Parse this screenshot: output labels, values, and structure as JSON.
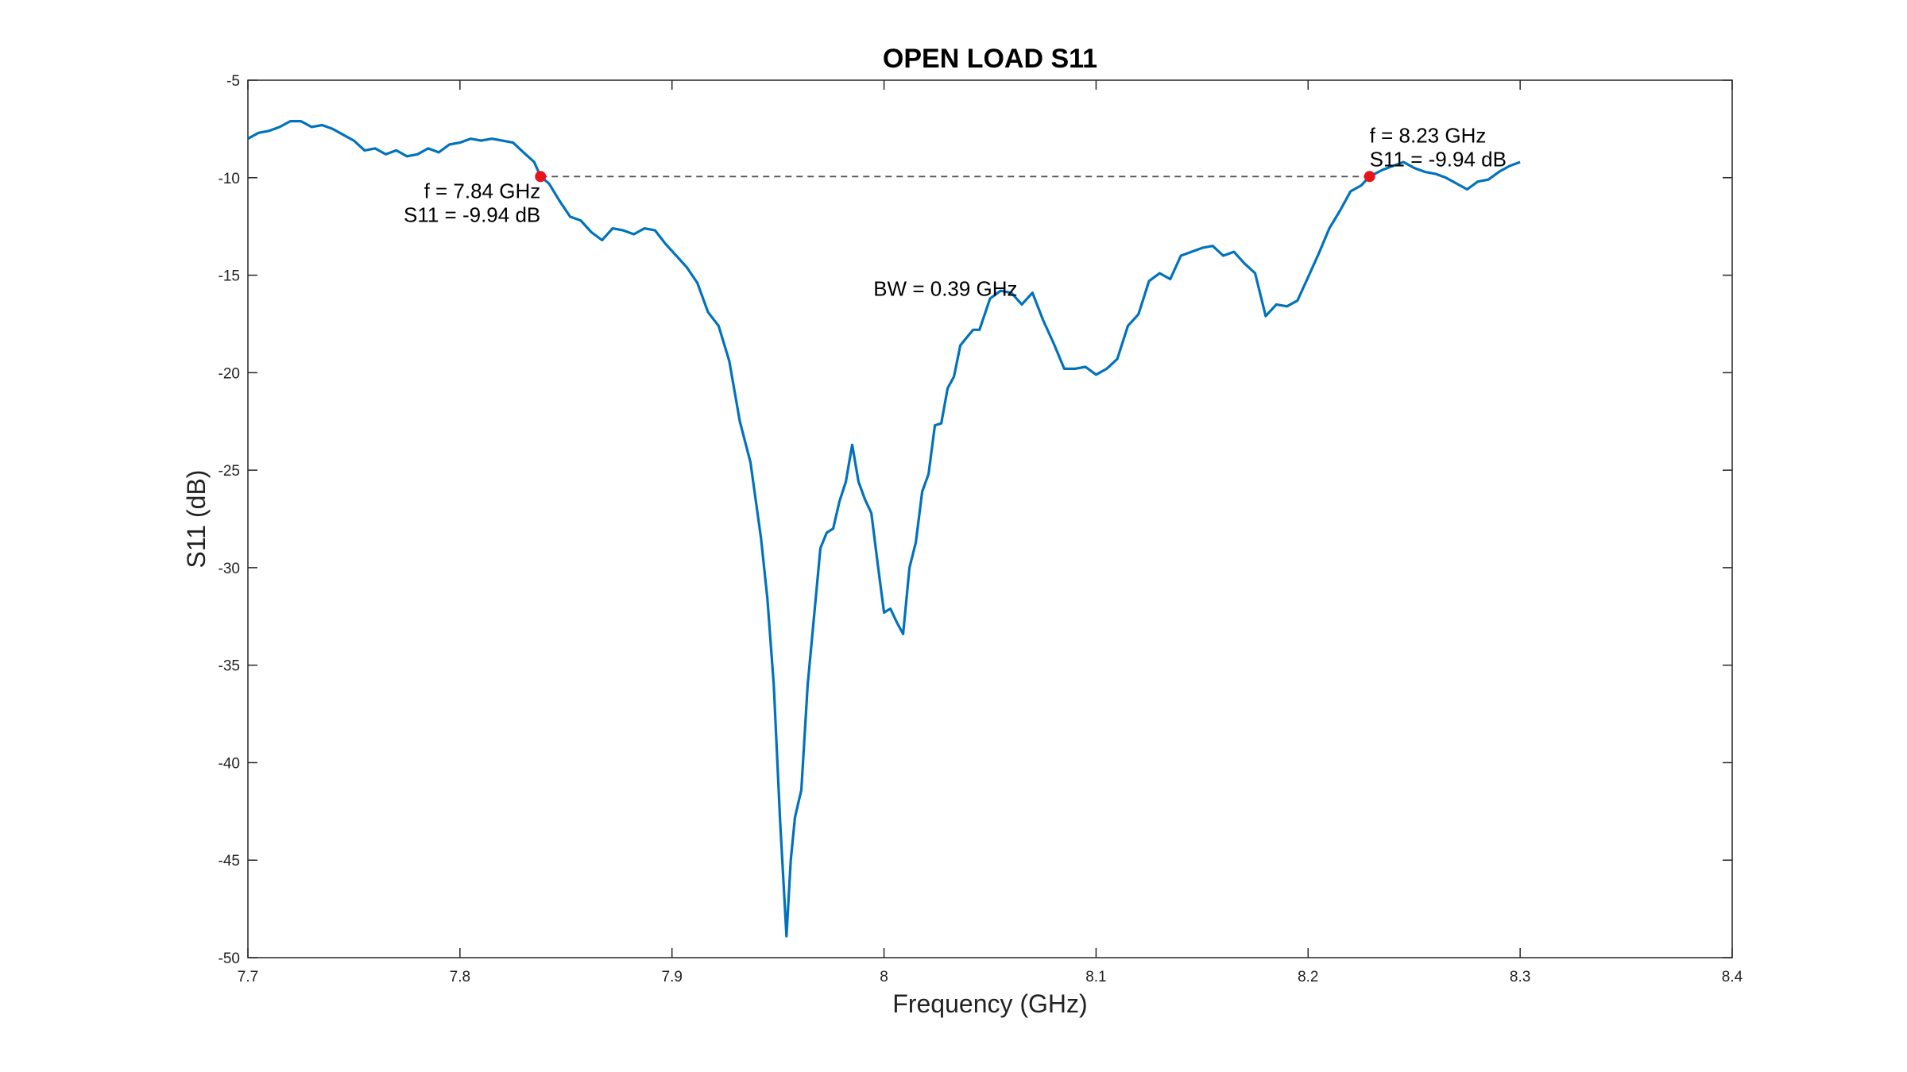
{
  "chart_data": {
    "type": "line",
    "title": "OPEN LOAD S11",
    "xlabel": "Frequency (GHz)",
    "ylabel": "S11 (dB)",
    "xlim": [
      7.7,
      8.4
    ],
    "ylim": [
      -50,
      -5
    ],
    "xticks": [
      7.7,
      7.8,
      7.9,
      8.0,
      8.1,
      8.2,
      8.3,
      8.4
    ],
    "xtick_labels": [
      "7.7",
      "7.8",
      "7.9",
      "8",
      "8.1",
      "8.2",
      "8.3",
      "8.4"
    ],
    "yticks": [
      -50,
      -45,
      -40,
      -35,
      -30,
      -25,
      -20,
      -15,
      -10,
      -5
    ],
    "ytick_labels": [
      "-50",
      "-45",
      "-40",
      "-35",
      "-30",
      "-25",
      "-20",
      "-15",
      "-10",
      "-5"
    ],
    "grid": false,
    "colors": {
      "line": "#0072BD",
      "marker": "#e8141c",
      "threshold": "#555555"
    },
    "series": [
      {
        "x": [
          7.7,
          7.705,
          7.71,
          7.715,
          7.72,
          7.725,
          7.73,
          7.735,
          7.74,
          7.745,
          7.75,
          7.755,
          7.76,
          7.765,
          7.77,
          7.775,
          7.78,
          7.785,
          7.79,
          7.795,
          7.8,
          7.805,
          7.81,
          7.815,
          7.82,
          7.825,
          7.83,
          7.835,
          7.838,
          7.842,
          7.847,
          7.852,
          7.857,
          7.862,
          7.867,
          7.872,
          7.877,
          7.882,
          7.887,
          7.892,
          7.897,
          7.902,
          7.907,
          7.912,
          7.917,
          7.922,
          7.927,
          7.932,
          7.937,
          7.942,
          7.945,
          7.948,
          7.951,
          7.954,
          7.956,
          7.958,
          7.961,
          7.964,
          7.967,
          7.97,
          7.973,
          7.976,
          7.979,
          7.982,
          7.985,
          7.988,
          7.991,
          7.994,
          7.997,
          8.0,
          8.003,
          8.006,
          8.009,
          8.012,
          8.015,
          8.018,
          8.021,
          8.024,
          8.027,
          8.03,
          8.033,
          8.036,
          8.039,
          8.042,
          8.045,
          8.05,
          8.055,
          8.06,
          8.065,
          8.07,
          8.075,
          8.08,
          8.085,
          8.09,
          8.095,
          8.1,
          8.105,
          8.11,
          8.115,
          8.12,
          8.125,
          8.13,
          8.135,
          8.14,
          8.145,
          8.15,
          8.155,
          8.16,
          8.165,
          8.17,
          8.175,
          8.18,
          8.185,
          8.19,
          8.195,
          8.2,
          8.205,
          8.21,
          8.215,
          8.22,
          8.225,
          8.229,
          8.235,
          8.24,
          8.245,
          8.25,
          8.255,
          8.26,
          8.265,
          8.27,
          8.275,
          8.28,
          8.285,
          8.29,
          8.295,
          8.3
        ],
        "y": [
          -8.0,
          -7.7,
          -7.6,
          -7.4,
          -7.1,
          -7.1,
          -7.4,
          -7.3,
          -7.5,
          -7.8,
          -8.1,
          -8.6,
          -8.5,
          -8.8,
          -8.6,
          -8.9,
          -8.8,
          -8.5,
          -8.7,
          -8.3,
          -8.2,
          -8.0,
          -8.1,
          -8.0,
          -8.1,
          -8.2,
          -8.7,
          -9.2,
          -9.94,
          -10.3,
          -11.2,
          -12.0,
          -12.2,
          -12.8,
          -13.2,
          -12.6,
          -12.7,
          -12.9,
          -12.6,
          -12.7,
          -13.4,
          -14.0,
          -14.6,
          -15.4,
          -16.9,
          -17.6,
          -19.4,
          -22.5,
          -24.6,
          -28.5,
          -31.6,
          -36.0,
          -43.0,
          -48.9,
          -45.0,
          -42.8,
          -41.4,
          -36.0,
          -32.5,
          -29.0,
          -28.2,
          -28.0,
          -26.6,
          -25.6,
          -23.7,
          -25.6,
          -26.5,
          -27.2,
          -29.8,
          -32.3,
          -32.1,
          -32.8,
          -33.4,
          -30.0,
          -28.7,
          -26.1,
          -25.2,
          -22.7,
          -22.6,
          -20.8,
          -20.2,
          -18.6,
          -18.2,
          -17.8,
          -17.8,
          -16.2,
          -15.8,
          -15.9,
          -16.5,
          -15.9,
          -17.3,
          -18.5,
          -19.8,
          -19.8,
          -19.7,
          -20.1,
          -19.8,
          -19.3,
          -17.6,
          -17.0,
          -15.3,
          -14.9,
          -15.2,
          -14.0,
          -13.8,
          -13.6,
          -13.5,
          -14.0,
          -13.8,
          -14.4,
          -14.9,
          -17.1,
          -16.5,
          -16.6,
          -16.3,
          -15.1,
          -13.9,
          -12.6,
          -11.7,
          -10.7,
          -10.4,
          -9.94,
          -9.6,
          -9.4,
          -9.2,
          -9.5,
          -9.7,
          -9.8,
          -10.0,
          -10.3,
          -10.6,
          -10.2,
          -10.1,
          -9.7,
          -9.4,
          -9.2
        ]
      }
    ],
    "threshold": {
      "y": -9.94,
      "x_start": 7.838,
      "x_end": 8.229
    },
    "markers": [
      {
        "x": 7.838,
        "y": -9.94,
        "label_f": "f = 7.84 GHz",
        "label_s": "S11 = -9.94 dB"
      },
      {
        "x": 8.229,
        "y": -9.94,
        "label_f": "f = 8.23 GHz",
        "label_s": "S11 = -9.94 dB"
      }
    ],
    "bw_annotation": {
      "text": "BW = 0.39 GHz",
      "x": 7.995,
      "y": -15.7
    }
  }
}
